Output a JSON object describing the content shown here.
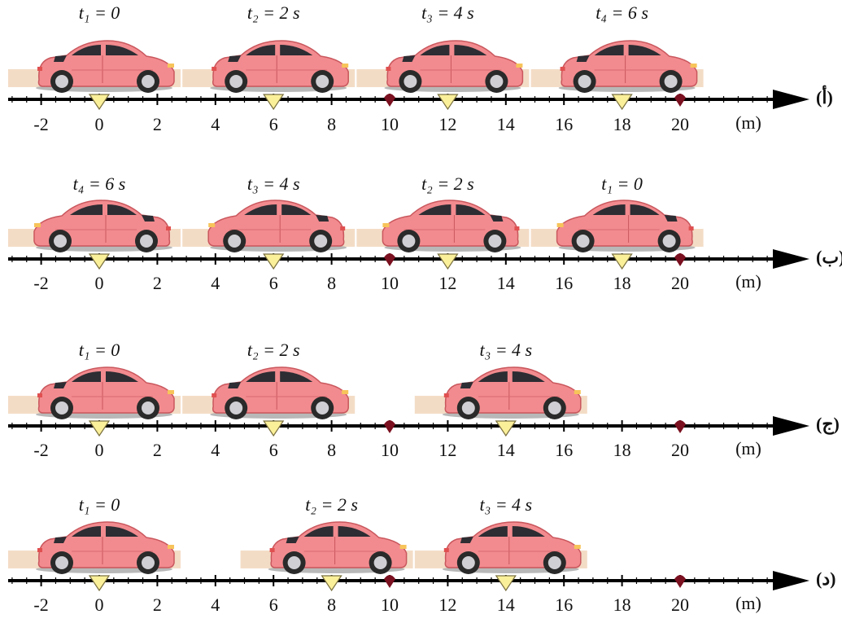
{
  "panels": [
    {
      "label": "(أ)",
      "unit": "(m)",
      "ticks": [
        -2,
        0,
        2,
        4,
        6,
        8,
        10,
        12,
        14,
        16,
        18,
        20
      ],
      "markers": [
        10,
        20
      ],
      "facing": "right",
      "cars": [
        {
          "time": "t₁ = 0",
          "position": 0
        },
        {
          "time": "t₂ = 2 s",
          "position": 6
        },
        {
          "time": "t₃ = 4 s",
          "position": 12
        },
        {
          "time": "t₄ = 6 s",
          "position": 18
        }
      ]
    },
    {
      "label": "(ب)",
      "unit": "(m)",
      "ticks": [
        -2,
        0,
        2,
        4,
        6,
        8,
        10,
        12,
        14,
        16,
        18,
        20
      ],
      "markers": [
        10,
        20
      ],
      "facing": "left",
      "cars": [
        {
          "time": "t₄ = 6 s",
          "position": 0
        },
        {
          "time": "t₃ = 4 s",
          "position": 6
        },
        {
          "time": "t₂ = 2 s",
          "position": 12
        },
        {
          "time": "t₁ = 0",
          "position": 18
        }
      ]
    },
    {
      "label": "(ج)",
      "unit": "(m)",
      "ticks": [
        -2,
        0,
        2,
        4,
        6,
        8,
        10,
        12,
        14,
        16,
        18,
        20
      ],
      "markers": [
        10,
        20
      ],
      "facing": "right",
      "cars": [
        {
          "time": "t₁ = 0",
          "position": 0
        },
        {
          "time": "t₂ = 2 s",
          "position": 6
        },
        {
          "time": "t₃ = 4 s",
          "position": 14
        }
      ]
    },
    {
      "label": "(د)",
      "unit": "(m)",
      "ticks": [
        -2,
        0,
        2,
        4,
        6,
        8,
        10,
        12,
        14,
        16,
        18,
        20
      ],
      "markers": [
        10,
        20
      ],
      "facing": "right",
      "cars": [
        {
          "time": "t₁ = 0",
          "position": 0
        },
        {
          "time": "t₂ = 2 s",
          "position": 8
        },
        {
          "time": "t₃ = 4 s",
          "position": 14
        }
      ]
    }
  ]
}
